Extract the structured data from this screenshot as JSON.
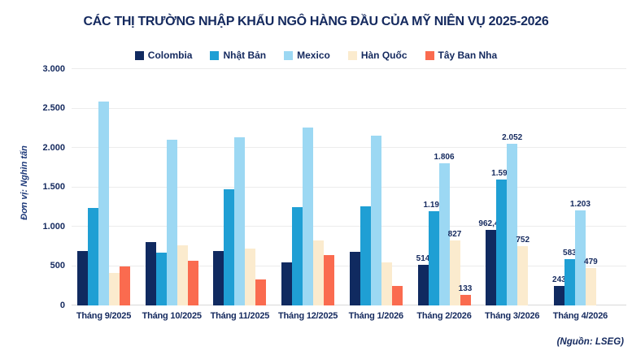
{
  "title": "CÁC THỊ TRƯỜNG NHẬP KHẨU NGÔ HÀNG ĐẦU CỦA MỸ NIÊN VỤ 2025-2026",
  "source": "(Nguồn: LSEG)",
  "y_axis": {
    "unit_label": "Đơn vị: Nghìn tấn"
  },
  "style": {
    "text_color": "#14295E",
    "grid_color": "#ECECEC",
    "axis_line_color": "#D9D9D9",
    "background": "#FFFFFF"
  },
  "chart_data": {
    "type": "bar",
    "title": "CÁC THỊ TRƯỜNG NHẬP KHẨU NGÔ HÀNG ĐẦU CỦA MỸ NIÊN VỤ 2025-2026",
    "xlabel": "",
    "ylabel": "Đơn vị: Nghìn tấn",
    "ylim": [
      0,
      3000
    ],
    "grid": true,
    "legend_position": "top",
    "yticks": [
      {
        "label": "3.000",
        "value": 3000
      },
      {
        "label": "2.500",
        "value": 2500
      },
      {
        "label": "2.000",
        "value": 2000
      },
      {
        "label": "1.500",
        "value": 1500
      },
      {
        "label": "1.000",
        "value": 1000
      },
      {
        "label": "500",
        "value": 500
      },
      {
        "label": "0",
        "value": 0
      }
    ],
    "categories": [
      "Tháng 9/2025",
      "Tháng 10/2025",
      "Tháng 11/2025",
      "Tháng 12/2025",
      "Tháng 1/2026",
      "Tháng 2/2026",
      "Tháng 3/2026",
      "Tháng 4/2026"
    ],
    "series": [
      {
        "name": "Colombia",
        "color": "#102A60",
        "values": [
          690,
          805,
          690,
          545,
          685,
          514,
          962.44,
          243
        ],
        "labels": [
          null,
          null,
          null,
          null,
          null,
          "514",
          "962,44",
          "243"
        ]
      },
      {
        "name": "Nhật Bản",
        "color": "#1F9FD4",
        "values": [
          1240,
          675,
          1470,
          1245,
          1255,
          1199,
          1599,
          583
        ],
        "labels": [
          null,
          null,
          null,
          null,
          null,
          "1.199",
          "1.599",
          "583"
        ]
      },
      {
        "name": "Mexico",
        "color": "#9CD8F3",
        "values": [
          2590,
          2105,
          2130,
          2260,
          2150,
          1806,
          2052,
          1203
        ],
        "labels": [
          null,
          null,
          null,
          null,
          null,
          "1.806",
          "2.052",
          "1.203"
        ]
      },
      {
        "name": "Hàn Quốc",
        "color": "#FBEBCE",
        "values": [
          410,
          760,
          725,
          820,
          550,
          827,
          752,
          479
        ],
        "labels": [
          null,
          null,
          null,
          null,
          null,
          "827",
          "752",
          "479"
        ]
      },
      {
        "name": "Tây Ban Nha",
        "color": "#FA6B4F",
        "values": [
          495,
          565,
          325,
          640,
          245,
          133,
          null,
          null
        ],
        "labels": [
          null,
          null,
          null,
          null,
          null,
          "133",
          null,
          null
        ]
      }
    ],
    "source": "(Nguồn: LSEG)"
  }
}
